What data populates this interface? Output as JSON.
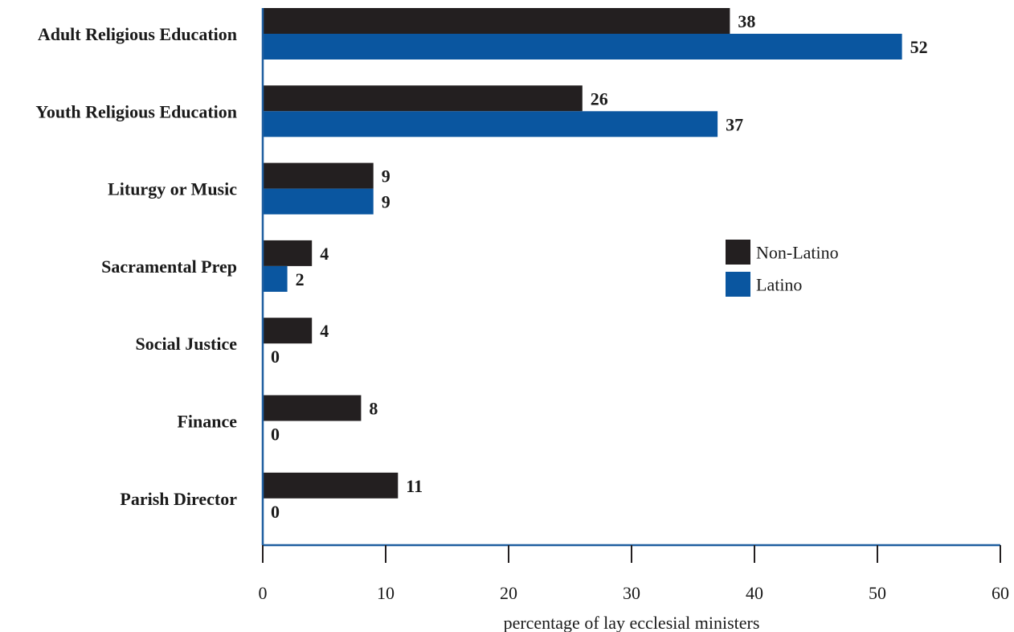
{
  "chart_data": {
    "type": "bar",
    "orientation": "horizontal",
    "title": "",
    "xlabel": "percentage of lay ecclesial ministers",
    "ylabel": "",
    "xlim": [
      0,
      60
    ],
    "x_ticks": [
      0,
      10,
      20,
      30,
      40,
      50,
      60
    ],
    "grid": false,
    "legend_position": "right",
    "categories": [
      "Adult Religious Education",
      "Youth Religious Education",
      "Liturgy or Music",
      "Sacramental Prep",
      "Social Justice",
      "Finance",
      "Parish Director"
    ],
    "series": [
      {
        "name": "Non-Latino",
        "color": "#231f20",
        "values": [
          38,
          26,
          9,
          4,
          4,
          8,
          11
        ]
      },
      {
        "name": "Latino",
        "color": "#0a56a0",
        "values": [
          52,
          37,
          9,
          2,
          0,
          0,
          0
        ]
      }
    ],
    "axis_color": "#1f5fa0"
  }
}
